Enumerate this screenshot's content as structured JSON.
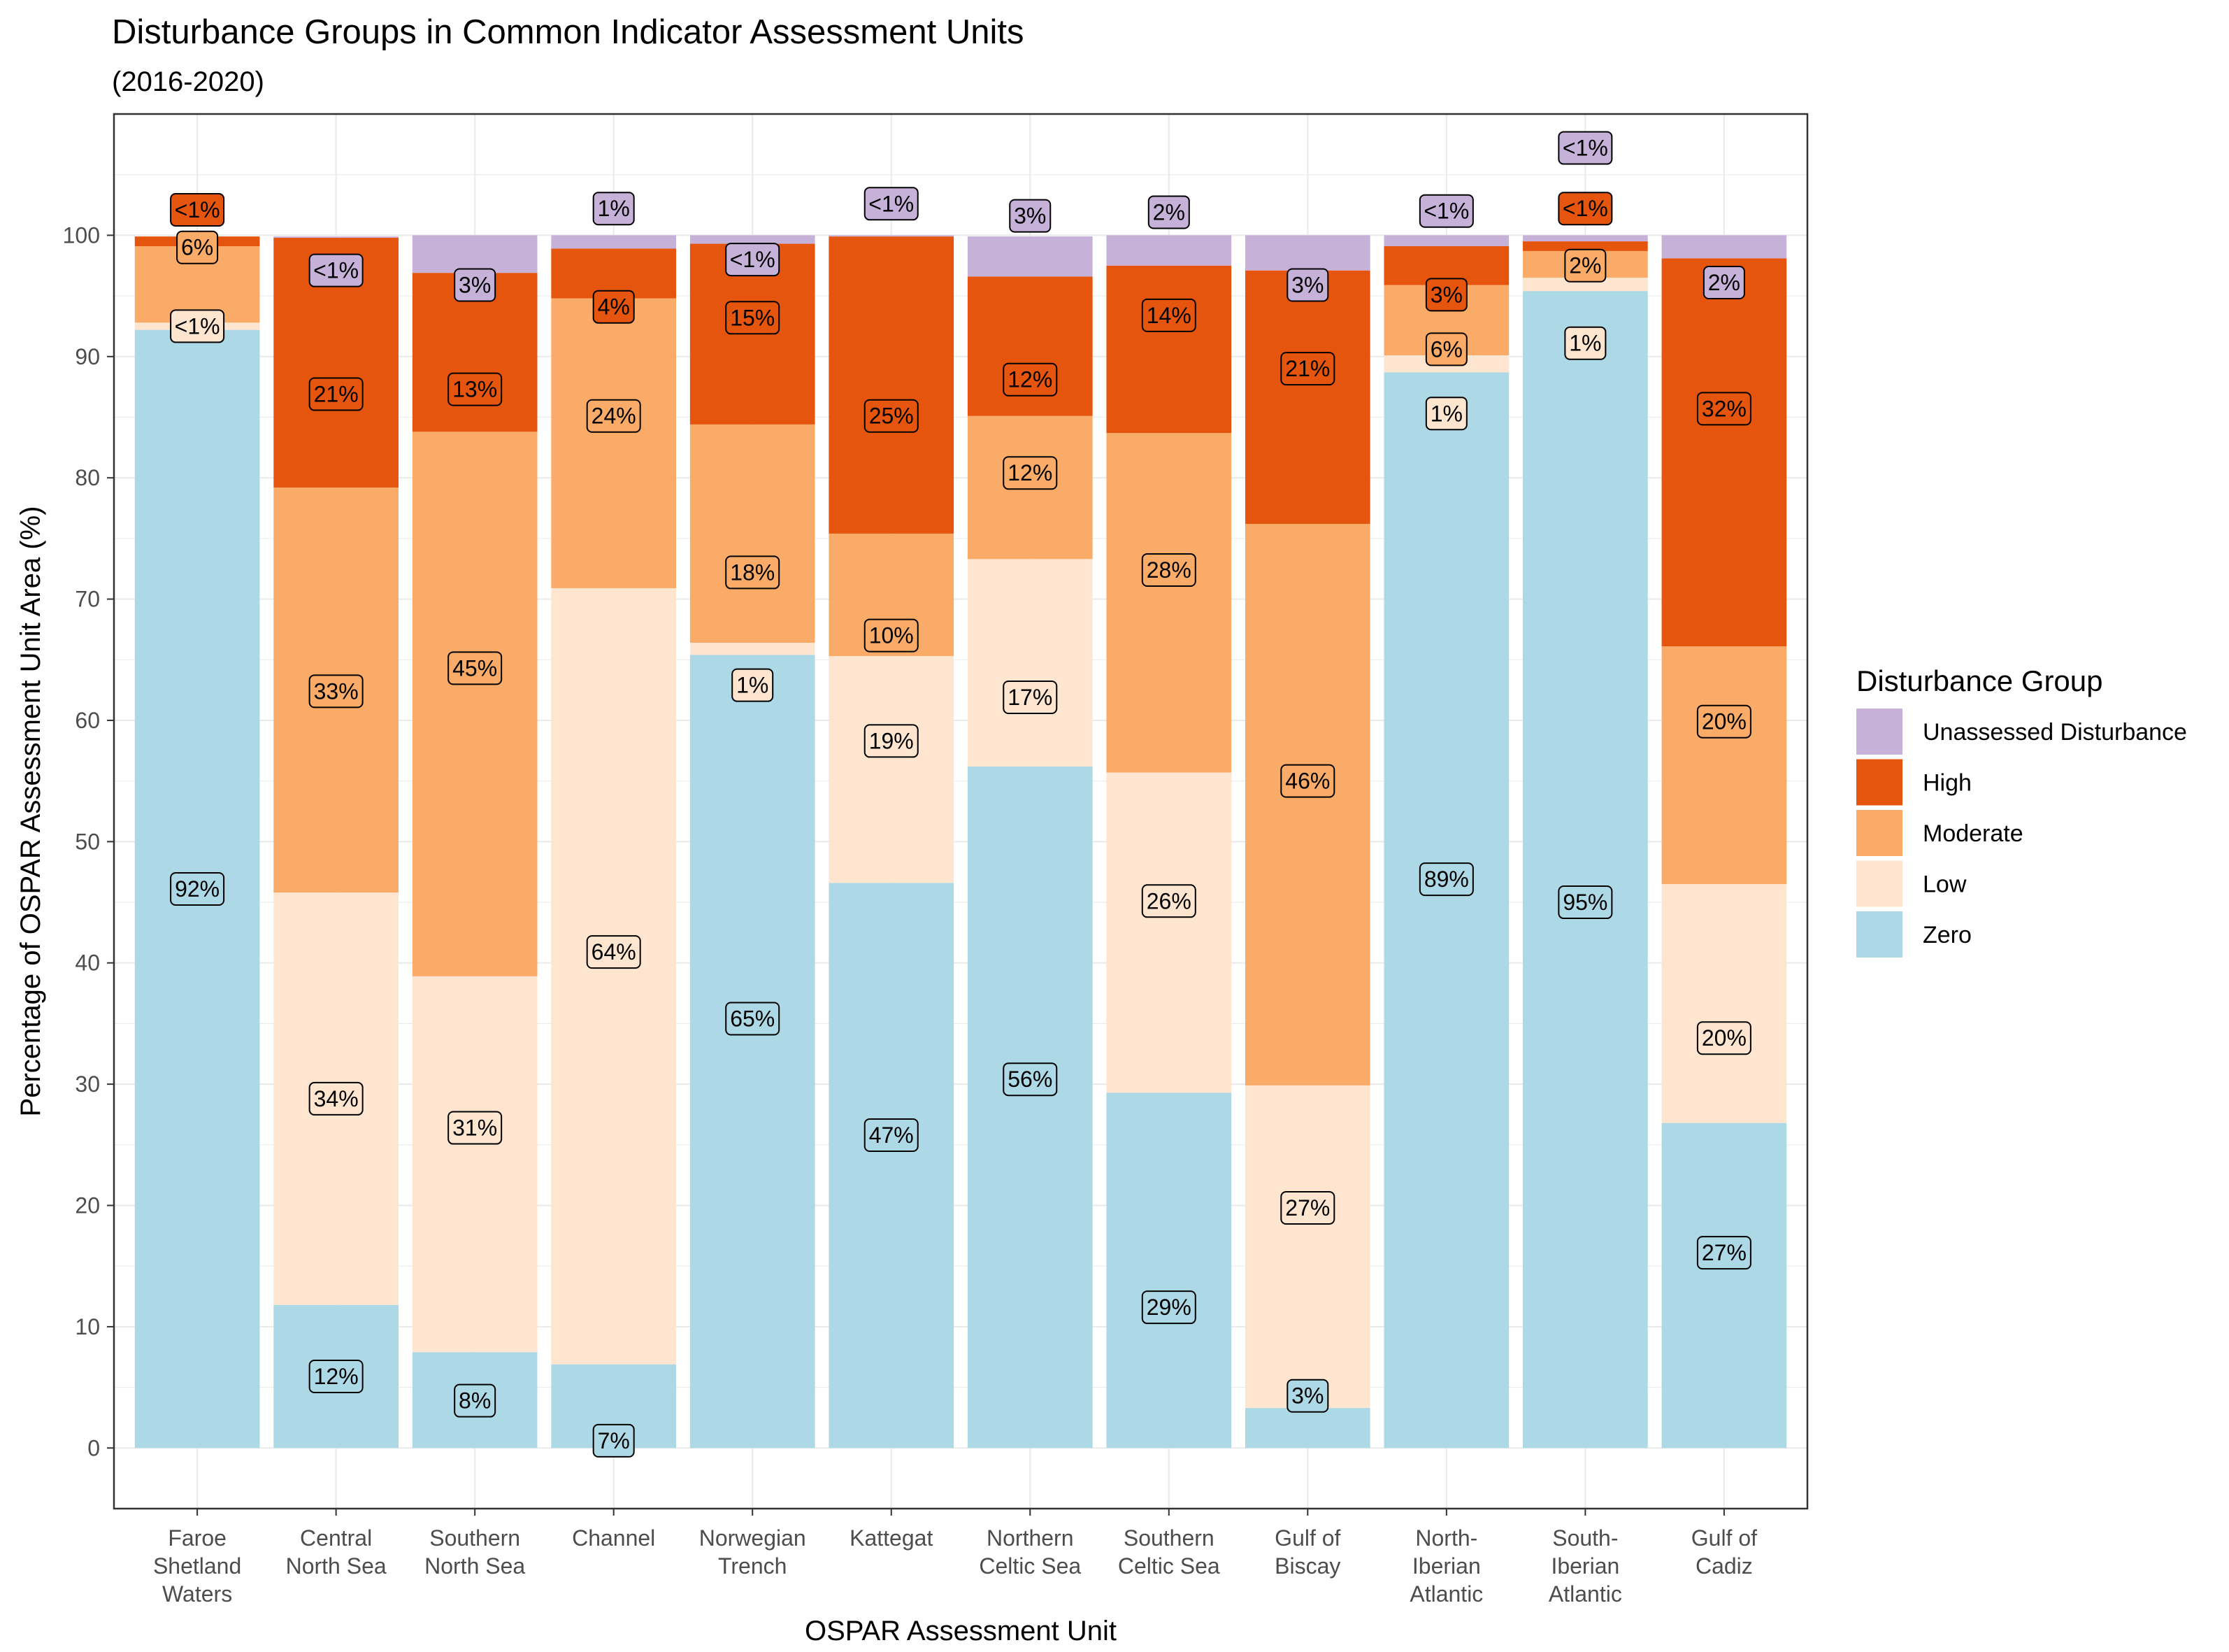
{
  "chart_data": {
    "type": "bar",
    "stacked": true,
    "title": "Disturbance Groups in Common Indicator Assessment Units",
    "subtitle": "(2016-2020)",
    "xlabel": "OSPAR Assessment Unit",
    "ylabel": "Percentage of OSPAR Assessment Unit Area (%)",
    "ylim": [
      -5,
      110
    ],
    "yticks": [
      0,
      10,
      20,
      30,
      40,
      50,
      60,
      70,
      80,
      90,
      100
    ],
    "grid": true,
    "legend_position": "right",
    "legend_title": "Disturbance Group",
    "categories": [
      [
        "Faroe",
        "Shetland",
        "Waters"
      ],
      [
        "Central",
        "North Sea"
      ],
      [
        "Southern",
        "North Sea"
      ],
      [
        "Channel"
      ],
      [
        "Norwegian",
        "Trench"
      ],
      [
        "Kattegat"
      ],
      [
        "Northern",
        "Celtic Sea"
      ],
      [
        "Southern",
        "Celtic Sea"
      ],
      [
        "Gulf of",
        "Biscay"
      ],
      [
        "North-",
        "Iberian",
        "Atlantic"
      ],
      [
        "South-",
        "Iberian",
        "Atlantic"
      ],
      [
        "Gulf of",
        "Cadiz"
      ]
    ],
    "series": [
      {
        "name": "Zero",
        "color": "#ADD8E6",
        "values": [
          92.2,
          11.8,
          7.9,
          6.9,
          65.4,
          46.6,
          56.2,
          29.3,
          3.3,
          88.7,
          95.4,
          26.8
        ],
        "labels": [
          "92%",
          "12%",
          "8%",
          "7%",
          "65%",
          "47%",
          "56%",
          "29%",
          "3%",
          "89%",
          "95%",
          "27%"
        ]
      },
      {
        "name": "Low",
        "color": "#FDE5CF",
        "values": [
          0.6,
          34.0,
          31.0,
          64.0,
          1.0,
          18.7,
          17.1,
          26.4,
          26.6,
          1.4,
          1.1,
          19.7
        ],
        "labels": [
          "<1%",
          "34%",
          "31%",
          "64%",
          "1%",
          "19%",
          "17%",
          "26%",
          "27%",
          "1%",
          "1%",
          "20%"
        ]
      },
      {
        "name": "Moderate",
        "color": "#FBAB68",
        "values": [
          6.3,
          33.4,
          44.9,
          23.9,
          18.0,
          10.1,
          11.8,
          28.0,
          46.3,
          5.8,
          2.2,
          19.6
        ],
        "labels": [
          "6%",
          "33%",
          "45%",
          "24%",
          "18%",
          "10%",
          "12%",
          "28%",
          "46%",
          "6%",
          "2%",
          "20%"
        ]
      },
      {
        "name": "High",
        "color": "#E6550D",
        "values": [
          0.8,
          20.6,
          13.1,
          4.1,
          14.9,
          24.5,
          11.5,
          13.8,
          20.9,
          3.2,
          0.8,
          32.0
        ],
        "labels": [
          "<1%",
          "21%",
          "13%",
          "4%",
          "15%",
          "25%",
          "12%",
          "14%",
          "21%",
          "3%",
          "<1%",
          "32%"
        ]
      },
      {
        "name": "Unassessed Disturbance",
        "color": "#C6B1D9",
        "values": [
          0.0,
          0.1,
          3.1,
          1.1,
          0.7,
          0.1,
          3.3,
          2.5,
          2.9,
          0.9,
          0.5,
          1.9
        ],
        "labels": [
          "",
          "<1%",
          "3%",
          "1%",
          "<1%",
          "<1%",
          "3%",
          "2%",
          "3%",
          "<1%",
          "<1%",
          "2%"
        ]
      }
    ],
    "label_positions": [
      [
        46.1,
        92.5,
        99.0,
        102.1,
        null
      ],
      [
        5.9,
        28.8,
        62.4,
        86.9,
        97.1
      ],
      [
        3.9,
        26.4,
        64.3,
        87.3,
        95.9
      ],
      [
        0.6,
        40.9,
        85.1,
        94.1,
        102.2
      ],
      [
        35.4,
        62.9,
        72.2,
        93.2,
        98.0
      ],
      [
        25.8,
        58.3,
        67.0,
        85.1,
        102.6
      ],
      [
        30.4,
        61.9,
        80.4,
        88.1,
        101.6
      ],
      [
        11.6,
        45.1,
        72.4,
        93.4,
        101.9
      ],
      [
        4.3,
        19.8,
        55.0,
        89.0,
        95.9
      ],
      [
        46.9,
        85.3,
        90.6,
        95.1,
        102.0
      ],
      [
        45.0,
        91.1,
        97.5,
        102.2,
        107.2
      ],
      [
        16.1,
        33.8,
        59.9,
        85.7,
        96.1
      ]
    ]
  }
}
